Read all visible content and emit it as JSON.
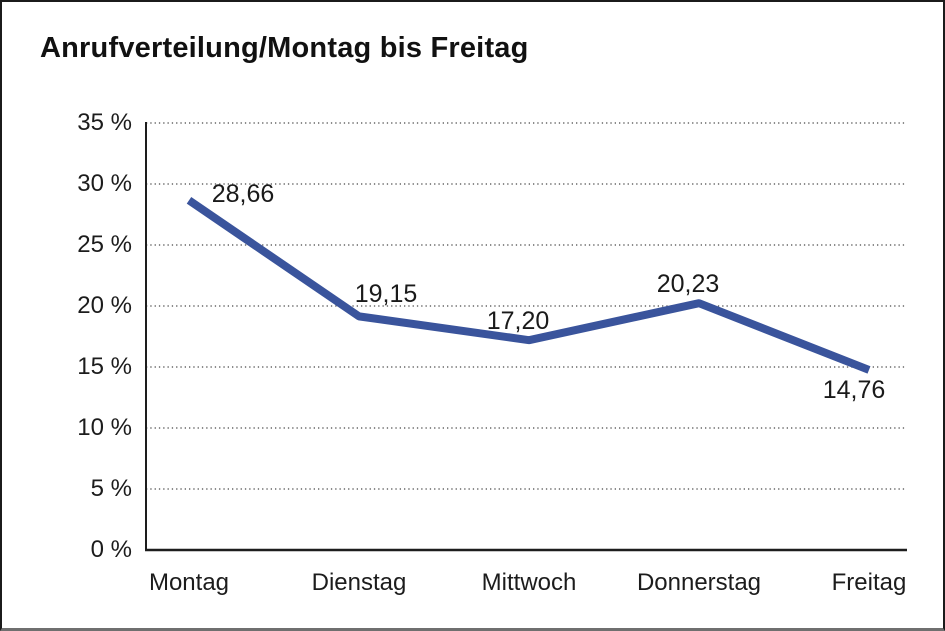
{
  "chart_data": {
    "type": "line",
    "title": "Anrufverteilung/Montag bis Freitag",
    "categories": [
      "Montag",
      "Dienstag",
      "Mittwoch",
      "Donnerstag",
      "Freitag"
    ],
    "values": [
      28.66,
      19.15,
      17.2,
      20.23,
      14.76
    ],
    "value_labels": [
      "28,66",
      "19,15",
      "17,20",
      "20,23",
      "14,76"
    ],
    "ytick_values": [
      0,
      5,
      10,
      15,
      20,
      25,
      30,
      35
    ],
    "yticks": [
      "0 %",
      "5 %",
      "10 %",
      "15 %",
      "20 %",
      "25 %",
      "30 %",
      "35 %"
    ],
    "ylim": [
      0,
      35
    ],
    "xlabel": "",
    "ylabel": "",
    "grid": "horizontal-dotted",
    "legend": "none",
    "line_color": "#3A549C",
    "axis_color": "#1d1d1d",
    "grid_color": "#666666",
    "text_color": "#1c1c1c"
  }
}
